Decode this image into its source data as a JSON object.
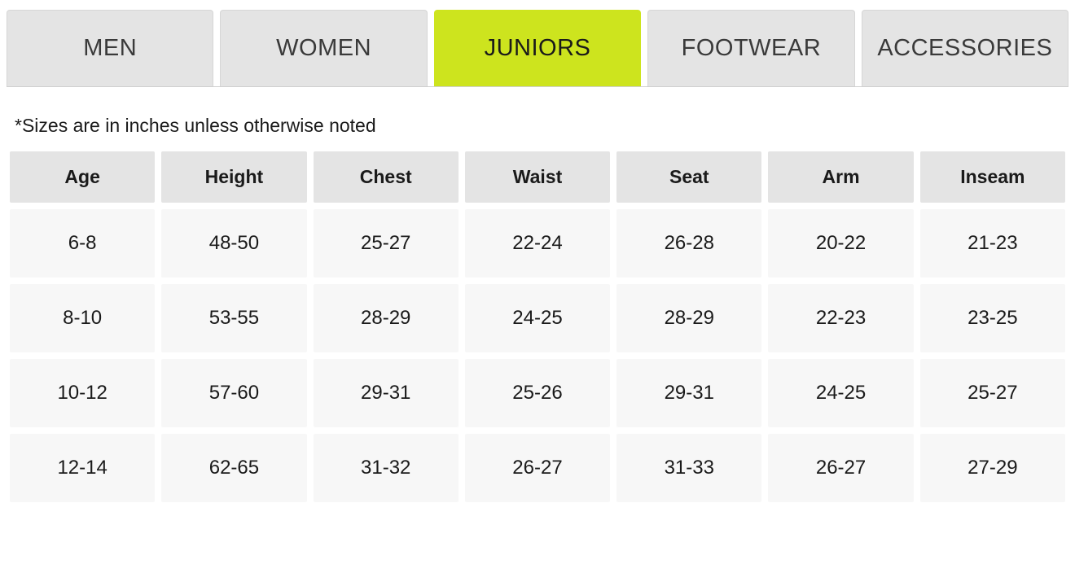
{
  "tabs": {
    "active_index": 2,
    "items": [
      {
        "label": "MEN"
      },
      {
        "label": "WOMEN"
      },
      {
        "label": "JUNIORS"
      },
      {
        "label": "FOOTWEAR"
      },
      {
        "label": "ACCESSORIES"
      }
    ],
    "tab_bg": "#e4e4e4",
    "tab_active_bg": "#cde41e"
  },
  "note": "*Sizes are in inches unless otherwise noted",
  "size_table": {
    "type": "table",
    "header_bg": "#e4e4e4",
    "data_bg": "#f7f7f7",
    "text_color": "#1a1a1a",
    "columns": [
      "Age",
      "Height",
      "Chest",
      "Waist",
      "Seat",
      "Arm",
      "Inseam"
    ],
    "rows": [
      [
        "6-8",
        "48-50",
        "25-27",
        "22-24",
        "26-28",
        "20-22",
        "21-23"
      ],
      [
        "8-10",
        "53-55",
        "28-29",
        "24-25",
        "28-29",
        "22-23",
        "23-25"
      ],
      [
        "10-12",
        "57-60",
        "29-31",
        "25-26",
        "29-31",
        "24-25",
        "25-27"
      ],
      [
        "12-14",
        "62-65",
        "31-32",
        "26-27",
        "31-33",
        "26-27",
        "27-29"
      ]
    ]
  }
}
